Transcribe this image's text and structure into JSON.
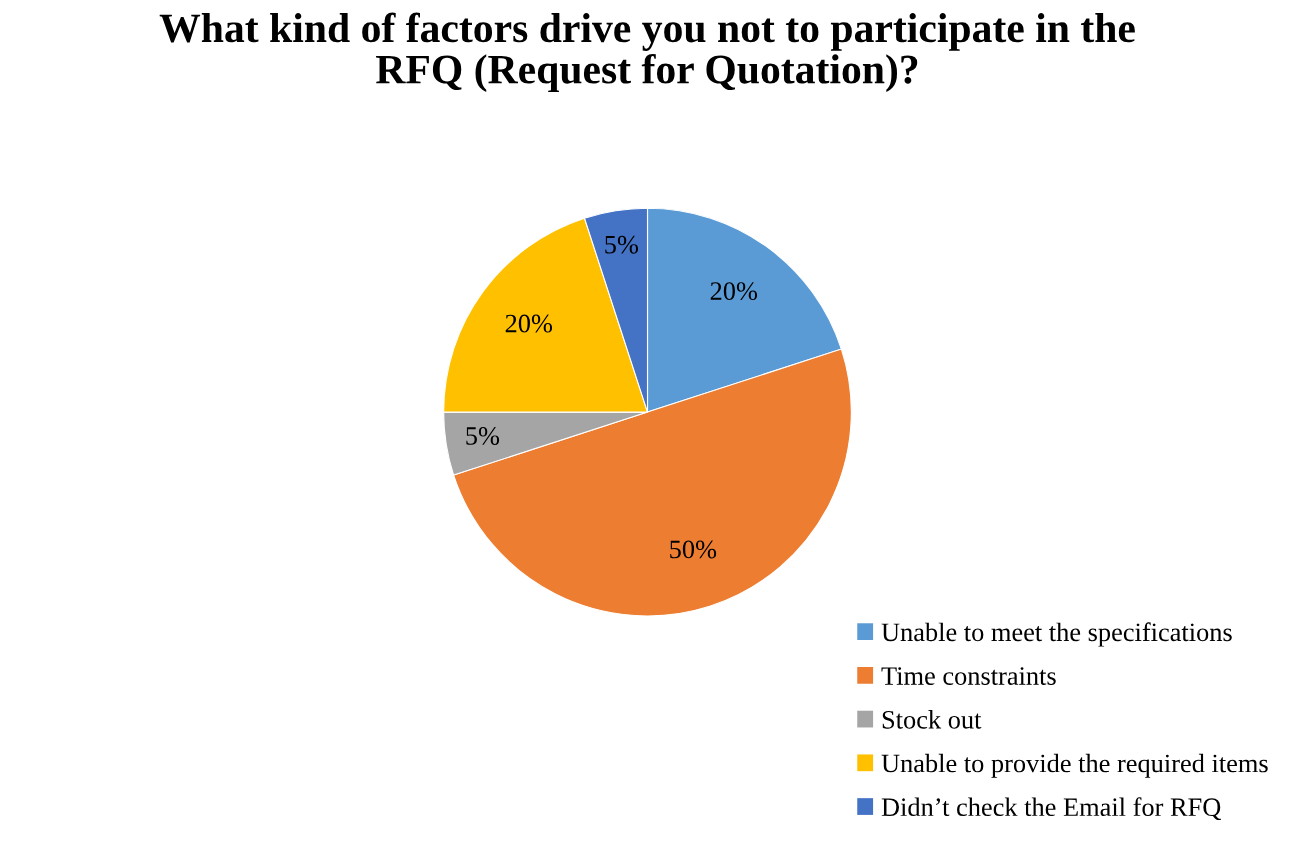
{
  "chart_data": {
    "type": "pie",
    "title": "What kind of factors drive you not to participate in the\nRFQ (Request for Quotation)?",
    "categories": [
      "Unable to meet the specifications",
      "Time constraints",
      "Stock out",
      "Unable to provide the required items",
      "Didn’t check the Email for RFQ"
    ],
    "values": [
      20,
      50,
      5,
      20,
      5
    ],
    "colors": [
      "#5b9bd5",
      "#ed7d31",
      "#a5a5a5",
      "#ffc000",
      "#4472c4"
    ],
    "value_labels": [
      "20%",
      "50%",
      "5%",
      "20%",
      "5%"
    ],
    "legend": "bottom right"
  }
}
